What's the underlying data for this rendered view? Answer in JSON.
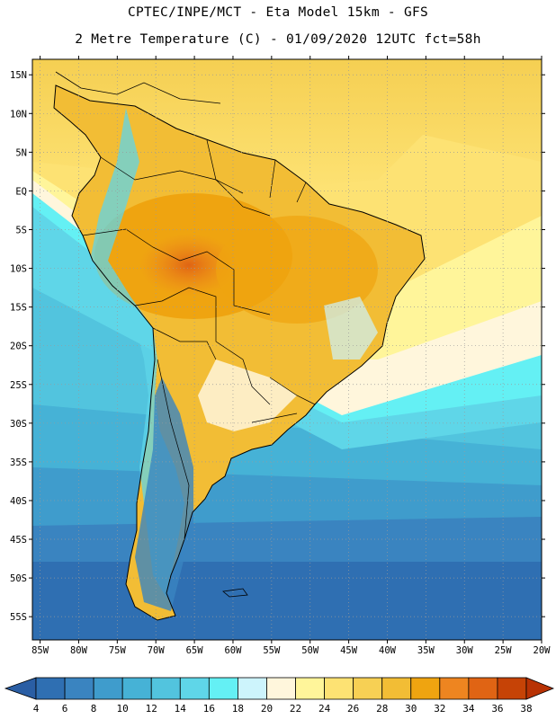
{
  "header": {
    "line1": "CPTEC/INPE/MCT -  Eta Model 15km - GFS",
    "line2": "2 Metre Temperature (C) - 01/09/2020 12UTC fct=58h"
  },
  "map": {
    "lon_range": [
      -86,
      -20
    ],
    "lat_range": [
      -58,
      17
    ],
    "lat_labels": [
      "15N",
      "10N",
      "5N",
      "EQ",
      "5S",
      "10S",
      "15S",
      "20S",
      "25S",
      "30S",
      "35S",
      "40S",
      "45S",
      "50S",
      "55S"
    ],
    "lat_values": [
      15,
      10,
      5,
      0,
      -5,
      -10,
      -15,
      -20,
      -25,
      -30,
      -35,
      -40,
      -45,
      -50,
      -55
    ],
    "lon_labels": [
      "85W",
      "80W",
      "75W",
      "70W",
      "65W",
      "60W",
      "55W",
      "50W",
      "45W",
      "40W",
      "35W",
      "30W",
      "25W",
      "20W"
    ],
    "lon_values": [
      -85,
      -80,
      -75,
      -70,
      -65,
      -60,
      -55,
      -50,
      -45,
      -40,
      -35,
      -30,
      -25,
      -20
    ]
  },
  "colorbar": {
    "labels": [
      "4",
      "6",
      "8",
      "10",
      "12",
      "14",
      "16",
      "18",
      "20",
      "22",
      "24",
      "26",
      "28",
      "30",
      "32",
      "34",
      "36",
      "38"
    ],
    "colors": [
      "#2f6fb2",
      "#3a84c0",
      "#3f9ccc",
      "#46b2d6",
      "#52c4de",
      "#5fd6e8",
      "#64f0f4",
      "#cdf4fc",
      "#fff6dc",
      "#fff59a",
      "#fde273",
      "#f7d054",
      "#f2bd35",
      "#efa410",
      "#ee8520",
      "#e06414",
      "#c64306"
    ],
    "under_color": "#2a5ea4",
    "over_color": "#b83204"
  }
}
